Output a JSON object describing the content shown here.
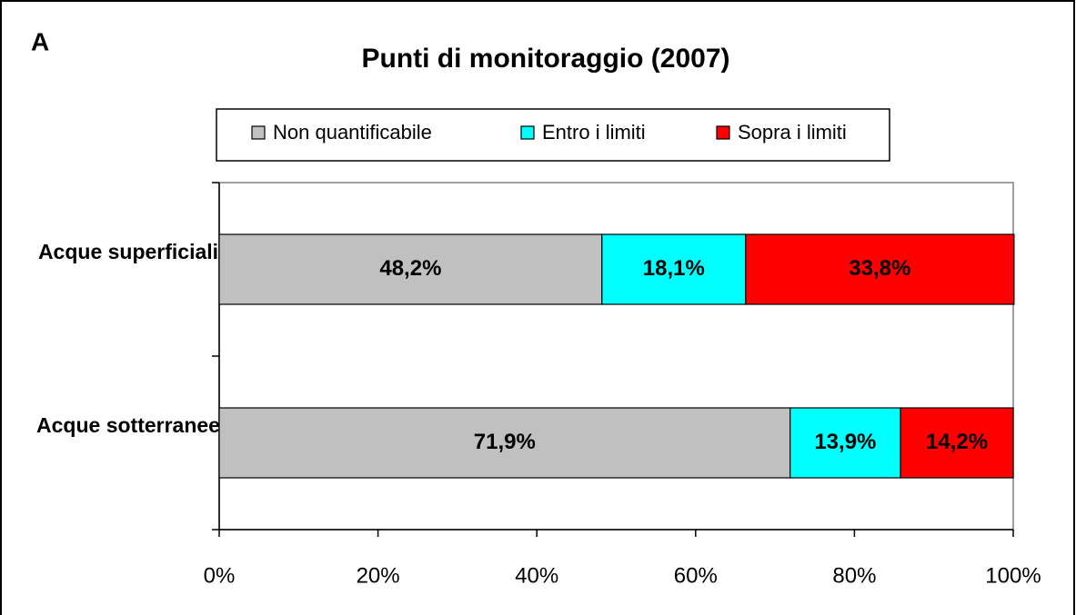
{
  "chart_data": {
    "type": "bar",
    "orientation": "horizontal",
    "stacked": true,
    "panel_label": "A",
    "title": "Punti di monitoraggio (2007)",
    "categories": [
      "Acque superficiali",
      "Acque sotterranee"
    ],
    "series": [
      {
        "name": "Non quantificabile",
        "color": "#c0c0c0",
        "values": [
          48.2,
          71.9
        ],
        "value_labels": [
          "48,2%",
          "71,9%"
        ]
      },
      {
        "name": "Entro i limiti",
        "color": "#00ffff",
        "values": [
          18.1,
          13.9
        ],
        "value_labels": [
          "18,1%",
          "13,9%"
        ]
      },
      {
        "name": "Sopra i limiti",
        "color": "#ff0000",
        "values": [
          33.8,
          14.2
        ],
        "value_labels": [
          "33,8%",
          "14,2%"
        ]
      }
    ],
    "xlim": [
      0,
      100
    ],
    "xticks": [
      {
        "value": 0,
        "label": "0%"
      },
      {
        "value": 20,
        "label": "20%"
      },
      {
        "value": 40,
        "label": "40%"
      },
      {
        "value": 60,
        "label": "60%"
      },
      {
        "value": 80,
        "label": "80%"
      },
      {
        "value": 100,
        "label": "100%"
      }
    ],
    "legend": "top"
  }
}
